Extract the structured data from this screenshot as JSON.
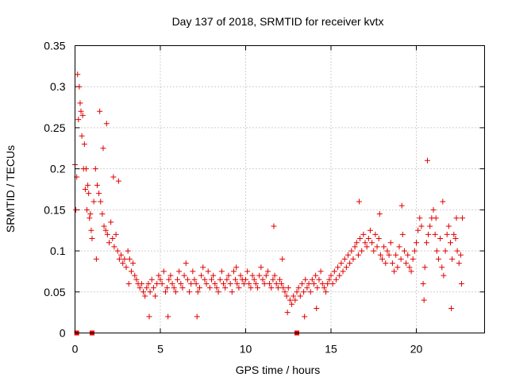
{
  "chart_data": {
    "type": "scatter",
    "title": "Day 137 of 2018, SRMTID for receiver kvtx",
    "xlabel": "GPS time / hours",
    "ylabel": "SRMTID / TECUs",
    "xlim": [
      0,
      24
    ],
    "ylim": [
      0,
      0.35
    ],
    "x_ticks": [
      0,
      5,
      10,
      15,
      20
    ],
    "x_tick_labels": [
      "0",
      "5",
      "10",
      "15",
      "20"
    ],
    "y_ticks": [
      0,
      0.05,
      0.1,
      0.15,
      0.2,
      0.25,
      0.3,
      0.35
    ],
    "y_tick_labels": [
      "0",
      "0.05",
      "0.1",
      "0.15",
      "0.2",
      "0.25",
      "0.3",
      "0.35"
    ],
    "grid": true,
    "marker": "+",
    "color": "#e00000",
    "zero_markers_x": [
      0.1,
      1.0,
      13.0
    ],
    "series": [
      {
        "name": "SRMTID",
        "x": [
          0.0,
          0.1,
          0.2,
          0.3,
          0.4,
          0.5,
          0.6,
          0.7,
          0.8,
          0.9,
          1.0,
          1.1,
          1.2,
          1.3,
          1.4,
          1.5,
          1.6,
          1.7,
          1.8,
          1.9,
          2.0,
          2.1,
          2.2,
          2.3,
          2.4,
          2.5,
          2.6,
          2.7,
          2.8,
          2.9,
          3.0,
          3.1,
          3.2,
          3.3,
          3.4,
          3.5,
          3.6,
          3.7,
          3.8,
          3.9,
          4.0,
          4.1,
          4.2,
          4.3,
          4.4,
          4.5,
          4.6,
          4.7,
          4.8,
          4.9,
          5.0,
          5.1,
          5.2,
          5.3,
          5.4,
          5.5,
          5.6,
          5.7,
          5.8,
          5.9,
          6.0,
          6.1,
          6.2,
          6.3,
          6.4,
          6.5,
          6.6,
          6.7,
          6.8,
          6.9,
          7.0,
          7.1,
          7.2,
          7.3,
          7.4,
          7.5,
          7.6,
          7.7,
          7.8,
          7.9,
          8.0,
          8.1,
          8.2,
          8.3,
          8.4,
          8.5,
          8.6,
          8.7,
          8.8,
          8.9,
          9.0,
          9.1,
          9.2,
          9.3,
          9.4,
          9.5,
          9.6,
          9.7,
          9.8,
          9.9,
          10.0,
          10.1,
          10.2,
          10.3,
          10.4,
          10.5,
          10.6,
          10.7,
          10.8,
          10.9,
          11.0,
          11.1,
          11.2,
          11.3,
          11.4,
          11.5,
          11.6,
          11.7,
          11.8,
          11.9,
          12.0,
          12.1,
          12.2,
          12.3,
          12.4,
          12.5,
          12.6,
          12.7,
          12.8,
          12.9,
          13.0,
          13.1,
          13.2,
          13.3,
          13.4,
          13.5,
          13.6,
          13.7,
          13.8,
          13.9,
          14.0,
          14.1,
          14.2,
          14.3,
          14.4,
          14.5,
          14.6,
          14.7,
          14.8,
          14.9,
          15.0,
          15.1,
          15.2,
          15.3,
          15.4,
          15.5,
          15.6,
          15.7,
          15.8,
          15.9,
          16.0,
          16.1,
          16.2,
          16.3,
          16.4,
          16.5,
          16.6,
          16.7,
          16.8,
          16.9,
          17.0,
          17.1,
          17.2,
          17.3,
          17.4,
          17.5,
          17.6,
          17.7,
          17.8,
          17.9,
          18.0,
          18.1,
          18.2,
          18.3,
          18.4,
          18.5,
          18.6,
          18.7,
          18.8,
          18.9,
          19.0,
          19.1,
          19.2,
          19.3,
          19.4,
          19.5,
          19.6,
          19.7,
          19.8,
          19.9,
          20.0,
          20.1,
          20.2,
          20.3,
          20.4,
          20.5,
          20.6,
          20.7,
          20.8,
          20.9,
          21.0,
          21.1,
          21.2,
          21.3,
          21.4,
          21.5,
          21.6,
          21.7,
          21.8,
          21.9,
          22.0,
          22.1,
          22.2,
          22.3,
          22.4,
          22.5,
          22.6,
          22.7,
          0.05,
          0.15,
          0.25,
          0.35,
          0.45,
          0.55,
          0.65,
          0.75,
          0.85,
          0.95,
          1.25,
          1.45,
          1.65,
          1.85,
          2.25,
          2.55,
          3.15,
          4.35,
          5.45,
          7.15,
          9.45,
          11.65,
          12.15,
          12.45,
          13.45,
          14.15,
          16.65,
          17.85,
          19.15,
          20.45,
          20.65,
          21.15,
          21.55,
          22.05,
          22.35,
          22.65
        ],
        "y": [
          0.205,
          0.19,
          0.26,
          0.28,
          0.24,
          0.2,
          0.175,
          0.15,
          0.17,
          0.145,
          0.115,
          0.16,
          0.2,
          0.18,
          0.17,
          0.16,
          0.145,
          0.13,
          0.125,
          0.12,
          0.11,
          0.135,
          0.115,
          0.105,
          0.12,
          0.1,
          0.09,
          0.095,
          0.085,
          0.09,
          0.08,
          0.1,
          0.09,
          0.075,
          0.085,
          0.07,
          0.065,
          0.06,
          0.055,
          0.06,
          0.05,
          0.045,
          0.055,
          0.06,
          0.05,
          0.065,
          0.055,
          0.045,
          0.06,
          0.07,
          0.065,
          0.06,
          0.075,
          0.05,
          0.055,
          0.065,
          0.07,
          0.06,
          0.055,
          0.05,
          0.065,
          0.075,
          0.06,
          0.055,
          0.07,
          0.085,
          0.065,
          0.05,
          0.06,
          0.075,
          0.065,
          0.06,
          0.05,
          0.055,
          0.07,
          0.08,
          0.065,
          0.06,
          0.075,
          0.055,
          0.065,
          0.07,
          0.06,
          0.055,
          0.05,
          0.065,
          0.075,
          0.06,
          0.055,
          0.065,
          0.07,
          0.06,
          0.05,
          0.075,
          0.065,
          0.06,
          0.055,
          0.07,
          0.065,
          0.06,
          0.065,
          0.075,
          0.06,
          0.055,
          0.07,
          0.065,
          0.06,
          0.055,
          0.07,
          0.08,
          0.065,
          0.06,
          0.07,
          0.075,
          0.06,
          0.055,
          0.065,
          0.07,
          0.06,
          0.055,
          0.065,
          0.06,
          0.055,
          0.05,
          0.045,
          0.055,
          0.04,
          0.035,
          0.045,
          0.04,
          0.05,
          0.055,
          0.045,
          0.06,
          0.05,
          0.065,
          0.055,
          0.06,
          0.05,
          0.065,
          0.06,
          0.07,
          0.055,
          0.065,
          0.075,
          0.06,
          0.055,
          0.05,
          0.06,
          0.065,
          0.07,
          0.06,
          0.075,
          0.065,
          0.08,
          0.07,
          0.085,
          0.075,
          0.09,
          0.08,
          0.095,
          0.085,
          0.1,
          0.09,
          0.105,
          0.11,
          0.095,
          0.115,
          0.1,
          0.12,
          0.11,
          0.105,
          0.115,
          0.125,
          0.11,
          0.1,
          0.12,
          0.105,
          0.115,
          0.095,
          0.09,
          0.105,
          0.085,
          0.1,
          0.095,
          0.11,
          0.085,
          0.075,
          0.095,
          0.08,
          0.105,
          0.09,
          0.12,
          0.1,
          0.085,
          0.095,
          0.08,
          0.075,
          0.09,
          0.1,
          0.11,
          0.125,
          0.14,
          0.13,
          0.06,
          0.08,
          0.11,
          0.12,
          0.13,
          0.14,
          0.15,
          0.12,
          0.1,
          0.09,
          0.115,
          0.08,
          0.07,
          0.1,
          0.12,
          0.13,
          0.11,
          0.09,
          0.12,
          0.115,
          0.1,
          0.085,
          0.095,
          0.14,
          0.15,
          0.315,
          0.3,
          0.27,
          0.265,
          0.23,
          0.2,
          0.18,
          0.14,
          0.125,
          0.09,
          0.27,
          0.225,
          0.255,
          0.19,
          0.185,
          0.06,
          0.02,
          0.02,
          0.02,
          0.08,
          0.13,
          0.09,
          0.025,
          0.02,
          0.03,
          0.16,
          0.145,
          0.155,
          0.04,
          0.21,
          0.14,
          0.16,
          0.03,
          0.14,
          0.06
        ]
      }
    ]
  }
}
